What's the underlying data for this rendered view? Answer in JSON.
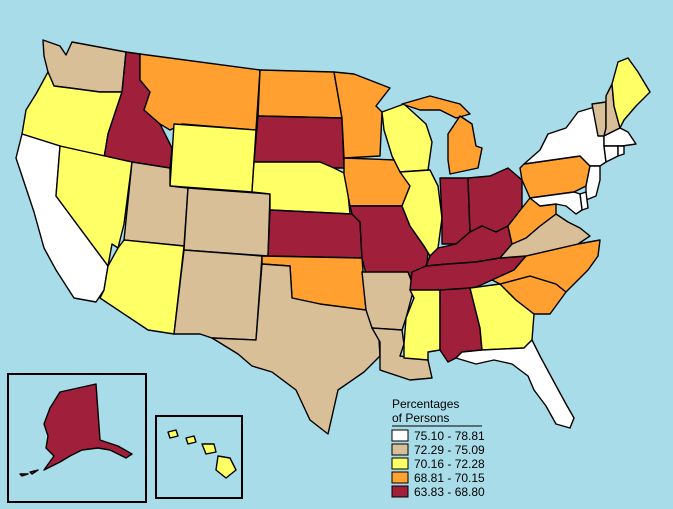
{
  "colors": {
    "water": "#a8dce8",
    "white": "#ffffff",
    "tan": "#d9bf98",
    "yellow": "#ffff66",
    "orange": "#ffa030",
    "crimson": "#a0203c",
    "outline": "#000000"
  },
  "legend": {
    "title_line1": "Percentages",
    "title_line2": "of Persons",
    "items": [
      {
        "label": "75.10 - 78.81",
        "color_key": "white"
      },
      {
        "label": "72.29 - 75.09",
        "color_key": "tan"
      },
      {
        "label": "70.16 - 72.28",
        "color_key": "yellow"
      },
      {
        "label": "68.81 - 70.15",
        "color_key": "orange"
      },
      {
        "label": "63.83 - 68.80",
        "color_key": "crimson"
      }
    ]
  },
  "states": {
    "WA": "tan",
    "OR": "yellow",
    "CA": "white",
    "ID": "crimson",
    "NV": "yellow",
    "MT": "orange",
    "WY": "yellow",
    "UT": "tan",
    "AZ": "yellow",
    "CO": "tan",
    "NM": "tan",
    "ND": "orange",
    "SD": "crimson",
    "NE": "yellow",
    "KS": "crimson",
    "OK": "orange",
    "TX": "tan",
    "MN": "orange",
    "IA": "orange",
    "MO": "crimson",
    "AR": "tan",
    "LA": "tan",
    "WI": "yellow",
    "IL": "yellow",
    "MI": "orange",
    "IN": "crimson",
    "OH": "crimson",
    "KY": "crimson",
    "TN": "crimson",
    "MS": "yellow",
    "AL": "crimson",
    "GA": "yellow",
    "FL": "white",
    "SC": "orange",
    "NC": "orange",
    "VA": "tan",
    "WV": "orange",
    "PA": "orange",
    "NY": "white",
    "VT": "tan",
    "NH": "tan",
    "ME": "yellow",
    "MA": "white",
    "CT": "white",
    "RI": "white",
    "NJ": "white",
    "DE": "white",
    "MD": "white",
    "AK": "crimson",
    "HI": "yellow"
  }
}
